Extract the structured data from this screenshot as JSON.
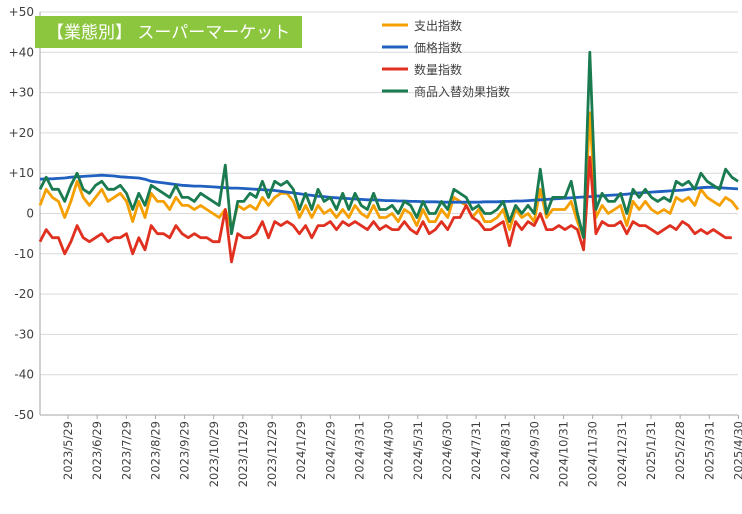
{
  "chart_data": {
    "type": "line",
    "title": "【業態別】 スーパーマーケット",
    "ylim": [
      -50,
      50
    ],
    "y_ticks": [
      -50,
      -40,
      -30,
      -20,
      -10,
      0,
      10,
      20,
      30,
      40,
      50
    ],
    "y_tick_labels": [
      "-50",
      "-40",
      "-30",
      "-20",
      "-10",
      "0",
      "+10",
      "+20",
      "+30",
      "+40",
      "+50"
    ],
    "x_tick_labels": [
      "2023/5/29",
      "2023/6/29",
      "2023/7/29",
      "2023/8/29",
      "2023/9/29",
      "2023/10/29",
      "2023/11/29",
      "2023/12/29",
      "2024/1/29",
      "2024/2/29",
      "2024/3/31",
      "2024/4/30",
      "2024/5/31",
      "2024/6/30",
      "2024/7/31",
      "2024/8/31",
      "2024/9/30",
      "2024/10/31",
      "2024/11/30",
      "2024/12/31",
      "2025/1/31",
      "2025/2/28",
      "2025/3/31",
      "2025/4/30"
    ],
    "grid": true,
    "legend_position": "top-center",
    "series": [
      {
        "name": "支出指数",
        "color": "#F5A000",
        "values": [
          2,
          6,
          4,
          3,
          -1,
          3,
          8,
          4,
          2,
          4,
          6,
          3,
          4,
          5,
          3,
          -2,
          3,
          -1,
          5,
          3,
          3,
          1,
          4,
          2,
          2,
          1,
          2,
          1,
          0,
          -1,
          1,
          -4,
          2,
          1,
          2,
          1,
          4,
          2,
          4,
          5,
          5,
          3,
          -1,
          2,
          -1,
          2,
          0,
          1,
          -1,
          1,
          -1,
          2,
          0,
          -1,
          2,
          -1,
          -1,
          0,
          -2,
          1,
          0,
          -3,
          1,
          -2,
          -2,
          1,
          -1,
          4,
          3,
          2,
          -1,
          1,
          -2,
          -2,
          -1,
          1,
          -4,
          1,
          -1,
          0,
          -2,
          6,
          -1,
          1,
          1,
          1,
          3,
          -2,
          -6,
          25,
          -1,
          2,
          0,
          1,
          2,
          -3,
          3,
          1,
          3,
          1,
          0,
          1,
          0,
          4,
          3,
          4,
          2,
          6,
          4,
          3,
          2,
          4,
          3,
          1
        ]
      },
      {
        "name": "価格指数",
        "color": "#2060C0",
        "values": [
          8.5,
          8.6,
          8.6,
          8.7,
          8.8,
          9.0,
          9.1,
          9.2,
          9.3,
          9.4,
          9.5,
          9.4,
          9.3,
          9.1,
          9.0,
          8.9,
          8.8,
          8.5,
          8.0,
          7.8,
          7.6,
          7.4,
          7.2,
          7.0,
          6.9,
          6.8,
          6.8,
          6.7,
          6.6,
          6.5,
          6.4,
          6.3,
          6.3,
          6.2,
          6.1,
          6.0,
          5.9,
          5.8,
          5.7,
          5.5,
          5.3,
          5.1,
          4.9,
          4.7,
          4.5,
          4.3,
          4.2,
          4.0,
          3.9,
          3.8,
          3.7,
          3.6,
          3.5,
          3.4,
          3.4,
          3.3,
          3.2,
          3.2,
          3.1,
          3.1,
          3.0,
          3.0,
          2.9,
          2.9,
          2.9,
          2.8,
          2.8,
          2.8,
          2.8,
          2.8,
          2.8,
          2.8,
          2.9,
          2.9,
          2.9,
          3.0,
          3.0,
          3.1,
          3.1,
          3.2,
          3.3,
          3.4,
          3.5,
          3.6,
          3.7,
          3.8,
          3.9,
          4.0,
          4.1,
          4.2,
          4.3,
          4.4,
          4.5,
          4.6,
          4.7,
          4.8,
          5.0,
          5.1,
          5.2,
          5.3,
          5.4,
          5.5,
          5.6,
          5.7,
          5.8,
          6.0,
          6.2,
          6.4,
          6.5,
          6.5,
          6.4,
          6.3,
          6.2,
          6.1
        ]
      },
      {
        "name": "数量指数",
        "color": "#E03020",
        "values": [
          -7,
          -4,
          -6,
          -6,
          -10,
          -7,
          -3,
          -6,
          -7,
          -6,
          -5,
          -7,
          -6,
          -6,
          -5,
          -10,
          -6,
          -9,
          -3,
          -5,
          -5,
          -6,
          -3,
          -5,
          -6,
          -5,
          -6,
          -6,
          -7,
          -7,
          1,
          -12,
          -5,
          -6,
          -6,
          -5,
          -2,
          -6,
          -2,
          -3,
          -2,
          -3,
          -5,
          -3,
          -6,
          -3,
          -3,
          -2,
          -4,
          -2,
          -3,
          -2,
          -3,
          -4,
          -2,
          -4,
          -3,
          -4,
          -4,
          -2,
          -4,
          -5,
          -2,
          -5,
          -4,
          -2,
          -4,
          -1,
          -1,
          2,
          -1,
          -2,
          -4,
          -4,
          -3,
          -2,
          -8,
          -2,
          -4,
          -2,
          -3,
          0,
          -4,
          -4,
          -3,
          -4,
          -3,
          -4,
          -9,
          14,
          -5,
          -2,
          -3,
          -3,
          -2,
          -5,
          -2,
          -3,
          -3,
          -4,
          -5,
          -4,
          -3,
          -4,
          -2,
          -3,
          -5,
          -4,
          -5,
          -4,
          -5,
          -6,
          -6
        ]
      },
      {
        "name": "商品入替効果指数",
        "color": "#1A7A50",
        "values": [
          6,
          9,
          6,
          6,
          3,
          7,
          10,
          6,
          5,
          7,
          8,
          6,
          6,
          7,
          5,
          1,
          5,
          2,
          7,
          6,
          5,
          4,
          7,
          4,
          4,
          3,
          5,
          4,
          3,
          2,
          12,
          -5,
          3,
          3,
          5,
          4,
          8,
          4,
          8,
          7,
          8,
          6,
          1,
          5,
          1,
          6,
          3,
          4,
          1,
          5,
          1,
          5,
          2,
          1,
          5,
          1,
          1,
          2,
          0,
          3,
          2,
          -1,
          3,
          0,
          0,
          3,
          1,
          6,
          5,
          4,
          1,
          2,
          0,
          0,
          1,
          3,
          -2,
          2,
          0,
          2,
          0,
          11,
          0,
          4,
          4,
          4,
          8,
          0,
          -6,
          40,
          1,
          5,
          3,
          3,
          5,
          0,
          6,
          4,
          6,
          4,
          3,
          4,
          3,
          8,
          7,
          8,
          6,
          10,
          8,
          7,
          6,
          11,
          9,
          8
        ]
      }
    ]
  }
}
